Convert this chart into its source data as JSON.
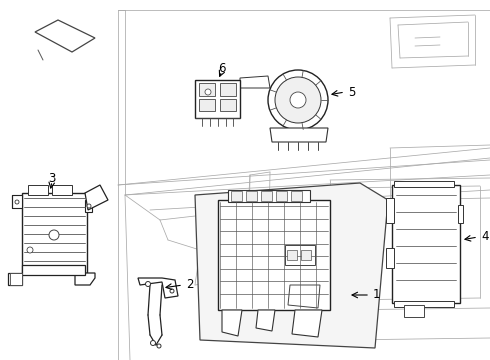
{
  "bg_color": "#ffffff",
  "fig_width": 4.9,
  "fig_height": 3.6,
  "dpi": 100,
  "gray_bg": "#888888",
  "gray_light": "#aaaaaa",
  "dark": "#222222",
  "mid": "#555555"
}
